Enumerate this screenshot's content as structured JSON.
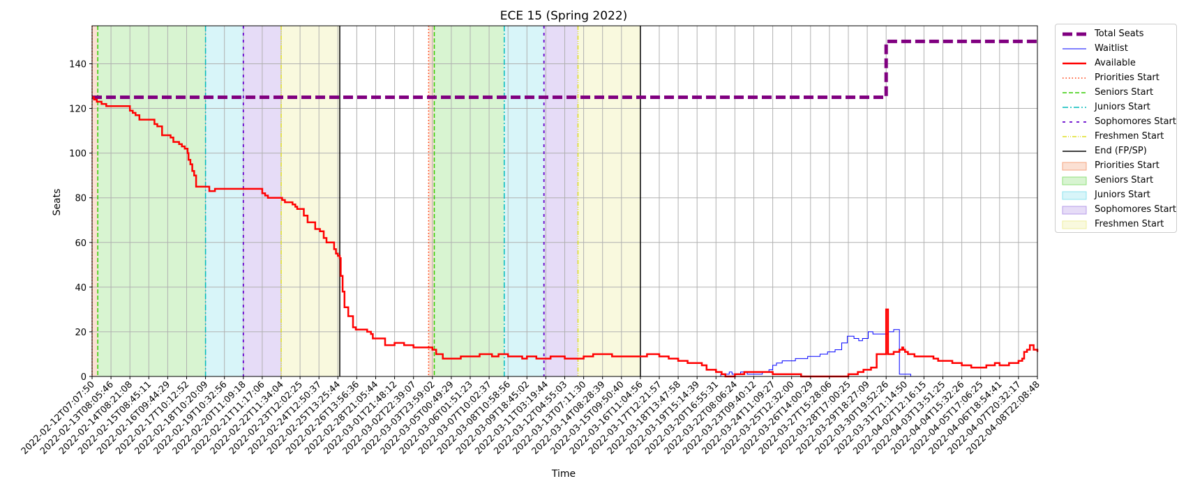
{
  "chart_data": {
    "type": "line",
    "title": "ECE 15 (Spring 2022)",
    "xlabel": "Time",
    "ylabel": "Seats",
    "ylim": [
      0,
      157
    ],
    "y_ticks": [
      0,
      20,
      40,
      60,
      80,
      100,
      120,
      140
    ],
    "x_start": "2022-02-12T07:07:50",
    "x_end": "2022-04-08T22:08:48",
    "x_ticks": [
      "2022-02-12T07:07:50",
      "2022-02-13T08:05:46",
      "2022-02-14T08:21:08",
      "2022-02-15T08:45:11",
      "2022-02-16T09:44:29",
      "2022-02-17T10:12:52",
      "2022-02-18T10:20:09",
      "2022-02-19T10:32:56",
      "2022-02-20T11:09:18",
      "2022-02-21T11:17:06",
      "2022-02-22T11:34:04",
      "2022-02-23T12:02:25",
      "2022-02-24T12:50:37",
      "2022-02-25T13:25:44",
      "2022-02-26T13:56:36",
      "2022-02-28T21:05:44",
      "2022-03-01T21:48:12",
      "2022-03-02T22:39:07",
      "2022-03-03T23:59:02",
      "2022-03-05T00:49:29",
      "2022-03-06T01:51:23",
      "2022-03-07T10:02:37",
      "2022-03-08T10:58:56",
      "2022-03-09T18:45:02",
      "2022-03-11T03:19:44",
      "2022-03-12T04:55:03",
      "2022-03-13T07:11:30",
      "2022-03-14T08:28:39",
      "2022-03-15T09:50:40",
      "2022-03-16T11:04:56",
      "2022-03-17T12:21:57",
      "2022-03-18T13:47:58",
      "2022-03-19T15:14:39",
      "2022-03-20T16:55:31",
      "2022-03-22T08:06:24",
      "2022-03-23T09:40:12",
      "2022-03-24T11:09:27",
      "2022-03-25T12:32:00",
      "2022-03-26T14:00:29",
      "2022-03-27T15:28:06",
      "2022-03-28T17:00:25",
      "2022-03-29T18:27:09",
      "2022-03-30T19:52:26",
      "2022-03-31T21:14:50",
      "2022-04-02T12:16:15",
      "2022-04-03T13:51:25",
      "2022-04-04T15:32:26",
      "2022-04-05T17:06:25",
      "2022-04-06T18:54:41",
      "2022-04-07T20:32:17",
      "2022-04-08T22:08:48"
    ],
    "grid": true,
    "legend_placement": "outside-right",
    "regions": [
      {
        "name": "Priorities Start",
        "from": 0.0,
        "to": 0.3,
        "color": "#f4a582"
      },
      {
        "name": "Seniors Start",
        "from": 0.3,
        "to": 6.0,
        "color": "#8fe07a"
      },
      {
        "name": "Juniors Start",
        "from": 6.0,
        "to": 8.0,
        "color": "#8ee3ee"
      },
      {
        "name": "Sophomores Start",
        "from": 8.0,
        "to": 10.0,
        "color": "#b79ce8"
      },
      {
        "name": "Freshmen Start",
        "from": 10.0,
        "to": 13.1,
        "color": "#eeeea0"
      },
      {
        "name": "Priorities Start",
        "from": 17.8,
        "to": 18.1,
        "color": "#f4a582"
      },
      {
        "name": "Seniors Start",
        "from": 18.1,
        "to": 21.8,
        "color": "#8fe07a"
      },
      {
        "name": "Juniors Start",
        "from": 21.8,
        "to": 23.9,
        "color": "#8ee3ee"
      },
      {
        "name": "Sophomores Start",
        "from": 23.9,
        "to": 25.7,
        "color": "#b79ce8"
      },
      {
        "name": "Freshmen Start",
        "from": 25.7,
        "to": 29.0,
        "color": "#eeeea0"
      }
    ],
    "vlines": [
      {
        "name": "Priorities Start",
        "at": 0.0,
        "color": "#ff3300",
        "dash": "1.5 3",
        "width": 1.5
      },
      {
        "name": "Seniors Start",
        "at": 0.3,
        "color": "#33cc00",
        "dash": "6 3",
        "width": 1.5
      },
      {
        "name": "Juniors Start",
        "at": 6.0,
        "color": "#00bbbb",
        "dash": "8 3 2 3",
        "width": 1.5
      },
      {
        "name": "Sophomores Start",
        "at": 8.0,
        "color": "#6600cc",
        "dash": "4 6",
        "width": 1.8
      },
      {
        "name": "Freshmen Start",
        "at": 10.0,
        "color": "#dddd22",
        "dash": "6 2 1 2 1 2",
        "width": 1.5
      },
      {
        "name": "End (FP/SP)",
        "at": 13.1,
        "color": "#000000",
        "dash": "",
        "width": 1.5
      },
      {
        "name": "Priorities Start",
        "at": 17.8,
        "color": "#ff3300",
        "dash": "1.5 3",
        "width": 1.5
      },
      {
        "name": "Seniors Start",
        "at": 18.1,
        "color": "#33cc00",
        "dash": "6 3",
        "width": 1.5
      },
      {
        "name": "Juniors Start",
        "at": 21.8,
        "color": "#00bbbb",
        "dash": "8 3 2 3",
        "width": 1.5
      },
      {
        "name": "Sophomores Start",
        "at": 23.9,
        "color": "#6600cc",
        "dash": "4 6",
        "width": 1.8
      },
      {
        "name": "Freshmen Start",
        "at": 25.7,
        "color": "#dddd22",
        "dash": "6 2 1 2 1 2",
        "width": 1.5
      },
      {
        "name": "End (FP/SP)",
        "at": 29.0,
        "color": "#000000",
        "dash": "",
        "width": 1.5
      }
    ],
    "series": [
      {
        "name": "Total Seats",
        "color": "#800080",
        "width": 5,
        "dash": "14 6",
        "step": true,
        "x": [
          0,
          83.5,
          84,
          100
        ],
        "y": [
          125,
          125,
          150,
          150
        ]
      },
      {
        "name": "Waitlist",
        "color": "#0000ff",
        "width": 1,
        "dash": "",
        "step": true,
        "x": [
          0,
          66.3,
          66.5,
          67.4,
          67.7,
          68.6,
          69.3,
          70.9,
          71.6,
          72.0,
          72.4,
          73.0,
          73.8,
          74.4,
          74.9,
          75.7,
          76.3,
          77.0,
          77.8,
          78.6,
          79.3,
          79.9,
          80.6,
          81.1,
          81.5,
          82.1,
          82.6,
          83.0,
          83.4,
          83.7,
          84.2,
          84.8,
          85.2,
          85.4,
          86.6,
          100
        ],
        "y": [
          0,
          0,
          1,
          2,
          1,
          2,
          1,
          2,
          3,
          5,
          6,
          7,
          7,
          8,
          8,
          9,
          9,
          10,
          11,
          12,
          15,
          18,
          17,
          16,
          17,
          20,
          19,
          19,
          19,
          19,
          20,
          21,
          21,
          1,
          0,
          0
        ]
      },
      {
        "name": "Available",
        "color": "#ff0000",
        "width": 2.5,
        "dash": "",
        "step": true,
        "x": [
          0,
          0.2,
          0.5,
          1.0,
          1.5,
          2.5,
          4.0,
          4.3,
          4.6,
          5.0,
          6.2,
          6.6,
          6.9,
          7.4,
          8.0,
          8.3,
          8.6,
          9.2,
          9.5,
          9.8,
          10.1,
          10.2,
          10.4,
          10.6,
          10.8,
          11.0,
          11.4,
          12.4,
          12.6,
          13.0,
          17.6,
          18.0,
          18.3,
          18.6,
          19.8,
          20.1,
          20.4,
          21.2,
          21.5,
          21.7,
          22.1,
          22.4,
          22.8,
          23.6,
          24.1,
          24.5,
          24.8,
          25.6,
          25.8,
          26.0,
          26.2,
          26.3,
          26.5,
          26.7,
          27.1,
          27.6,
          27.9,
          29.1,
          29.5,
          29.7,
          31.0,
          32.0,
          32.6,
          33.0,
          34.0,
          36.0,
          36.4,
          37.1,
          38.0,
          39.0,
          40.0,
          41.0,
          42.3,
          43.0,
          44.0,
          45.5,
          46.0,
          47.0,
          48.5,
          50.0,
          52.0,
          53.0,
          55.0,
          57.0,
          58.7,
          60.0,
          61.0,
          62.0,
          62.5,
          63.0,
          64.5,
          65.0,
          66.0,
          66.6,
          66.8,
          67.0,
          67.5,
          68.0,
          69.0,
          72.0,
          75.0,
          78.5,
          79.0,
          80.0,
          81.0,
          81.6,
          82.4,
          83.0,
          84.0,
          84.2,
          84.4,
          84.8,
          85.0,
          85.4,
          85.7,
          85.8,
          86.0,
          86.3,
          87.0,
          89.0,
          89.5,
          90.0,
          91.0,
          92.0,
          93.0,
          94.0,
          94.6,
          95.0,
          95.5,
          96.0,
          96.5,
          97.0,
          97.5,
          98.0,
          98.4,
          98.6,
          98.9,
          99.2,
          99.6,
          100
        ],
        "y": [
          125,
          124,
          123,
          122,
          121,
          121,
          119,
          118,
          117,
          115,
          115,
          113,
          112,
          108,
          108,
          107,
          105,
          104,
          103,
          102,
          100,
          97,
          95,
          92,
          90,
          85,
          85,
          83,
          83,
          84,
          84,
          82,
          81,
          80,
          80,
          79,
          78,
          77,
          76,
          75,
          75,
          72,
          69,
          66,
          65,
          62,
          60,
          57,
          55,
          54,
          53,
          45,
          38,
          31,
          27,
          22,
          21,
          20,
          19,
          17,
          14,
          15,
          15,
          14,
          13,
          12,
          10,
          8,
          8,
          9,
          9,
          10,
          9,
          10,
          9,
          8,
          9,
          8,
          9,
          8,
          9,
          10,
          9,
          9,
          10,
          9,
          8,
          7,
          7,
          6,
          5,
          3,
          2,
          1,
          1,
          0,
          0,
          1,
          2,
          1,
          0,
          0,
          0,
          1,
          2,
          3,
          4,
          10,
          30,
          10,
          10,
          11,
          11,
          12,
          13,
          12,
          11,
          10,
          9,
          8,
          7,
          7,
          6,
          5,
          4,
          4,
          5,
          5,
          6,
          5,
          5,
          6,
          6,
          7,
          8,
          11,
          12,
          14,
          12,
          11
        ]
      }
    ]
  },
  "legend": [
    {
      "label": "Total Seats",
      "kind": "line",
      "color": "#800080",
      "width": 5,
      "dash": "14 6"
    },
    {
      "label": "Waitlist",
      "kind": "line",
      "color": "#0000ff",
      "width": 1,
      "dash": ""
    },
    {
      "label": "Available",
      "kind": "line",
      "color": "#ff0000",
      "width": 2.5,
      "dash": ""
    },
    {
      "label": "Priorities Start",
      "kind": "line",
      "color": "#ff3300",
      "width": 1.5,
      "dash": "1.5 3"
    },
    {
      "label": "Seniors Start",
      "kind": "line",
      "color": "#33cc00",
      "width": 1.5,
      "dash": "6 3"
    },
    {
      "label": "Juniors Start",
      "kind": "line",
      "color": "#00bbbb",
      "width": 1.5,
      "dash": "8 3 2 3"
    },
    {
      "label": "Sophomores Start",
      "kind": "line",
      "color": "#6600cc",
      "width": 1.8,
      "dash": "4 6"
    },
    {
      "label": "Freshmen Start",
      "kind": "line",
      "color": "#dddd22",
      "width": 1.5,
      "dash": "6 2 1 2 1 2"
    },
    {
      "label": "End (FP/SP)",
      "kind": "line",
      "color": "#000000",
      "width": 1.5,
      "dash": ""
    },
    {
      "label": "Priorities Start",
      "kind": "patch",
      "color": "#f4a582"
    },
    {
      "label": "Seniors Start",
      "kind": "patch",
      "color": "#8fe07a"
    },
    {
      "label": "Juniors Start",
      "kind": "patch",
      "color": "#8ee3ee"
    },
    {
      "label": "Sophomores Start",
      "kind": "patch",
      "color": "#b79ce8"
    },
    {
      "label": "Freshmen Start",
      "kind": "patch",
      "color": "#eeeea0"
    }
  ]
}
